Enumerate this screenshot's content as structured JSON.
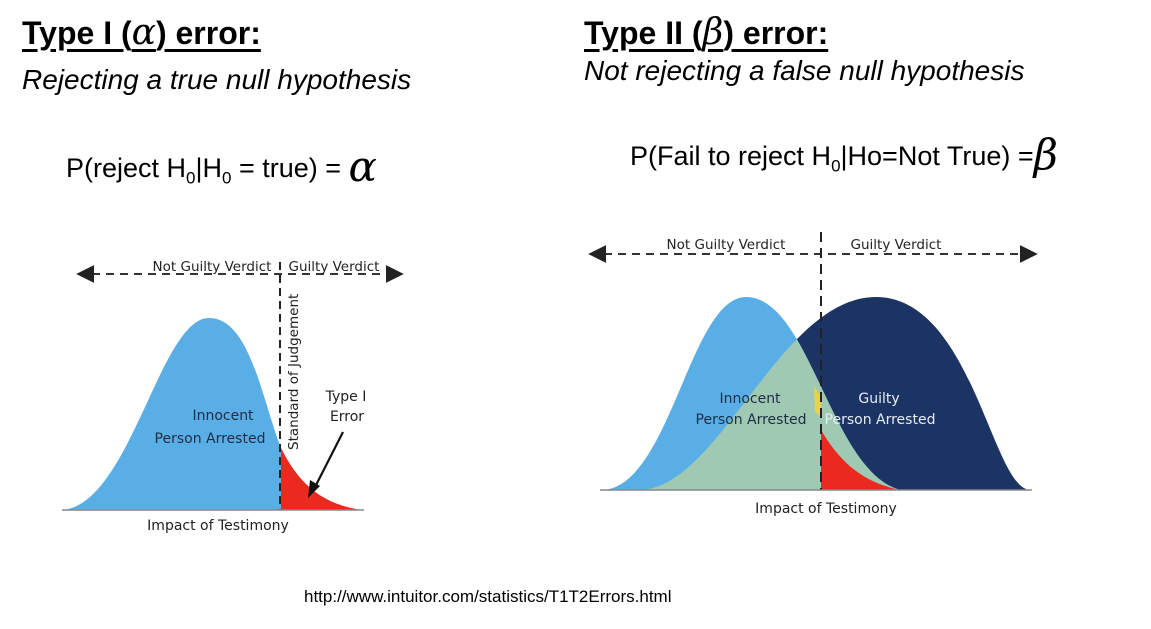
{
  "left": {
    "heading_before": "Type I (",
    "heading_symbol": "α",
    "heading_after": ") error:",
    "subtitle": "Rejecting a true null hypothesis",
    "formula": {
      "part1": "P(reject H",
      "sub1": "0",
      "part2": "|H",
      "sub2": "0",
      "part3": " = true) = ",
      "symbol": "α"
    },
    "diagram": {
      "left_label": "Not Guilty Verdict",
      "right_label": "Guilty Verdict",
      "curve_label_line1": "Innocent",
      "curve_label_line2": "Person Arrested",
      "threshold_label": "Standard of Judgement",
      "error_label_line1": "Type I",
      "error_label_line2": "Error",
      "axis_label": "Impact of Testimony"
    }
  },
  "right": {
    "heading_before": "Type II (",
    "heading_symbol": "β",
    "heading_after": ") error:",
    "subtitle": "Not rejecting a false null hypothesis",
    "formula": {
      "part1": "P(Fail to reject H",
      "sub1": "0",
      "part2": "|Ho=Not True) =",
      "symbol": "β"
    },
    "diagram": {
      "left_label": "Not Guilty Verdict",
      "right_label": "Guilty Verdict",
      "innocent_line1": "Innocent",
      "innocent_line2": "Person Arrested",
      "guilty_line1": "Guilty",
      "guilty_line2": "Person Arrested",
      "axis_label": "Impact of Testimony"
    }
  },
  "source_url": "http://www.intuitor.com/statistics/T1T2Errors.html",
  "colors": {
    "innocent": "#5aaee6",
    "guilty": "#1b3464",
    "overlap": "#9fc9b2",
    "error": "#ea2a1e"
  }
}
